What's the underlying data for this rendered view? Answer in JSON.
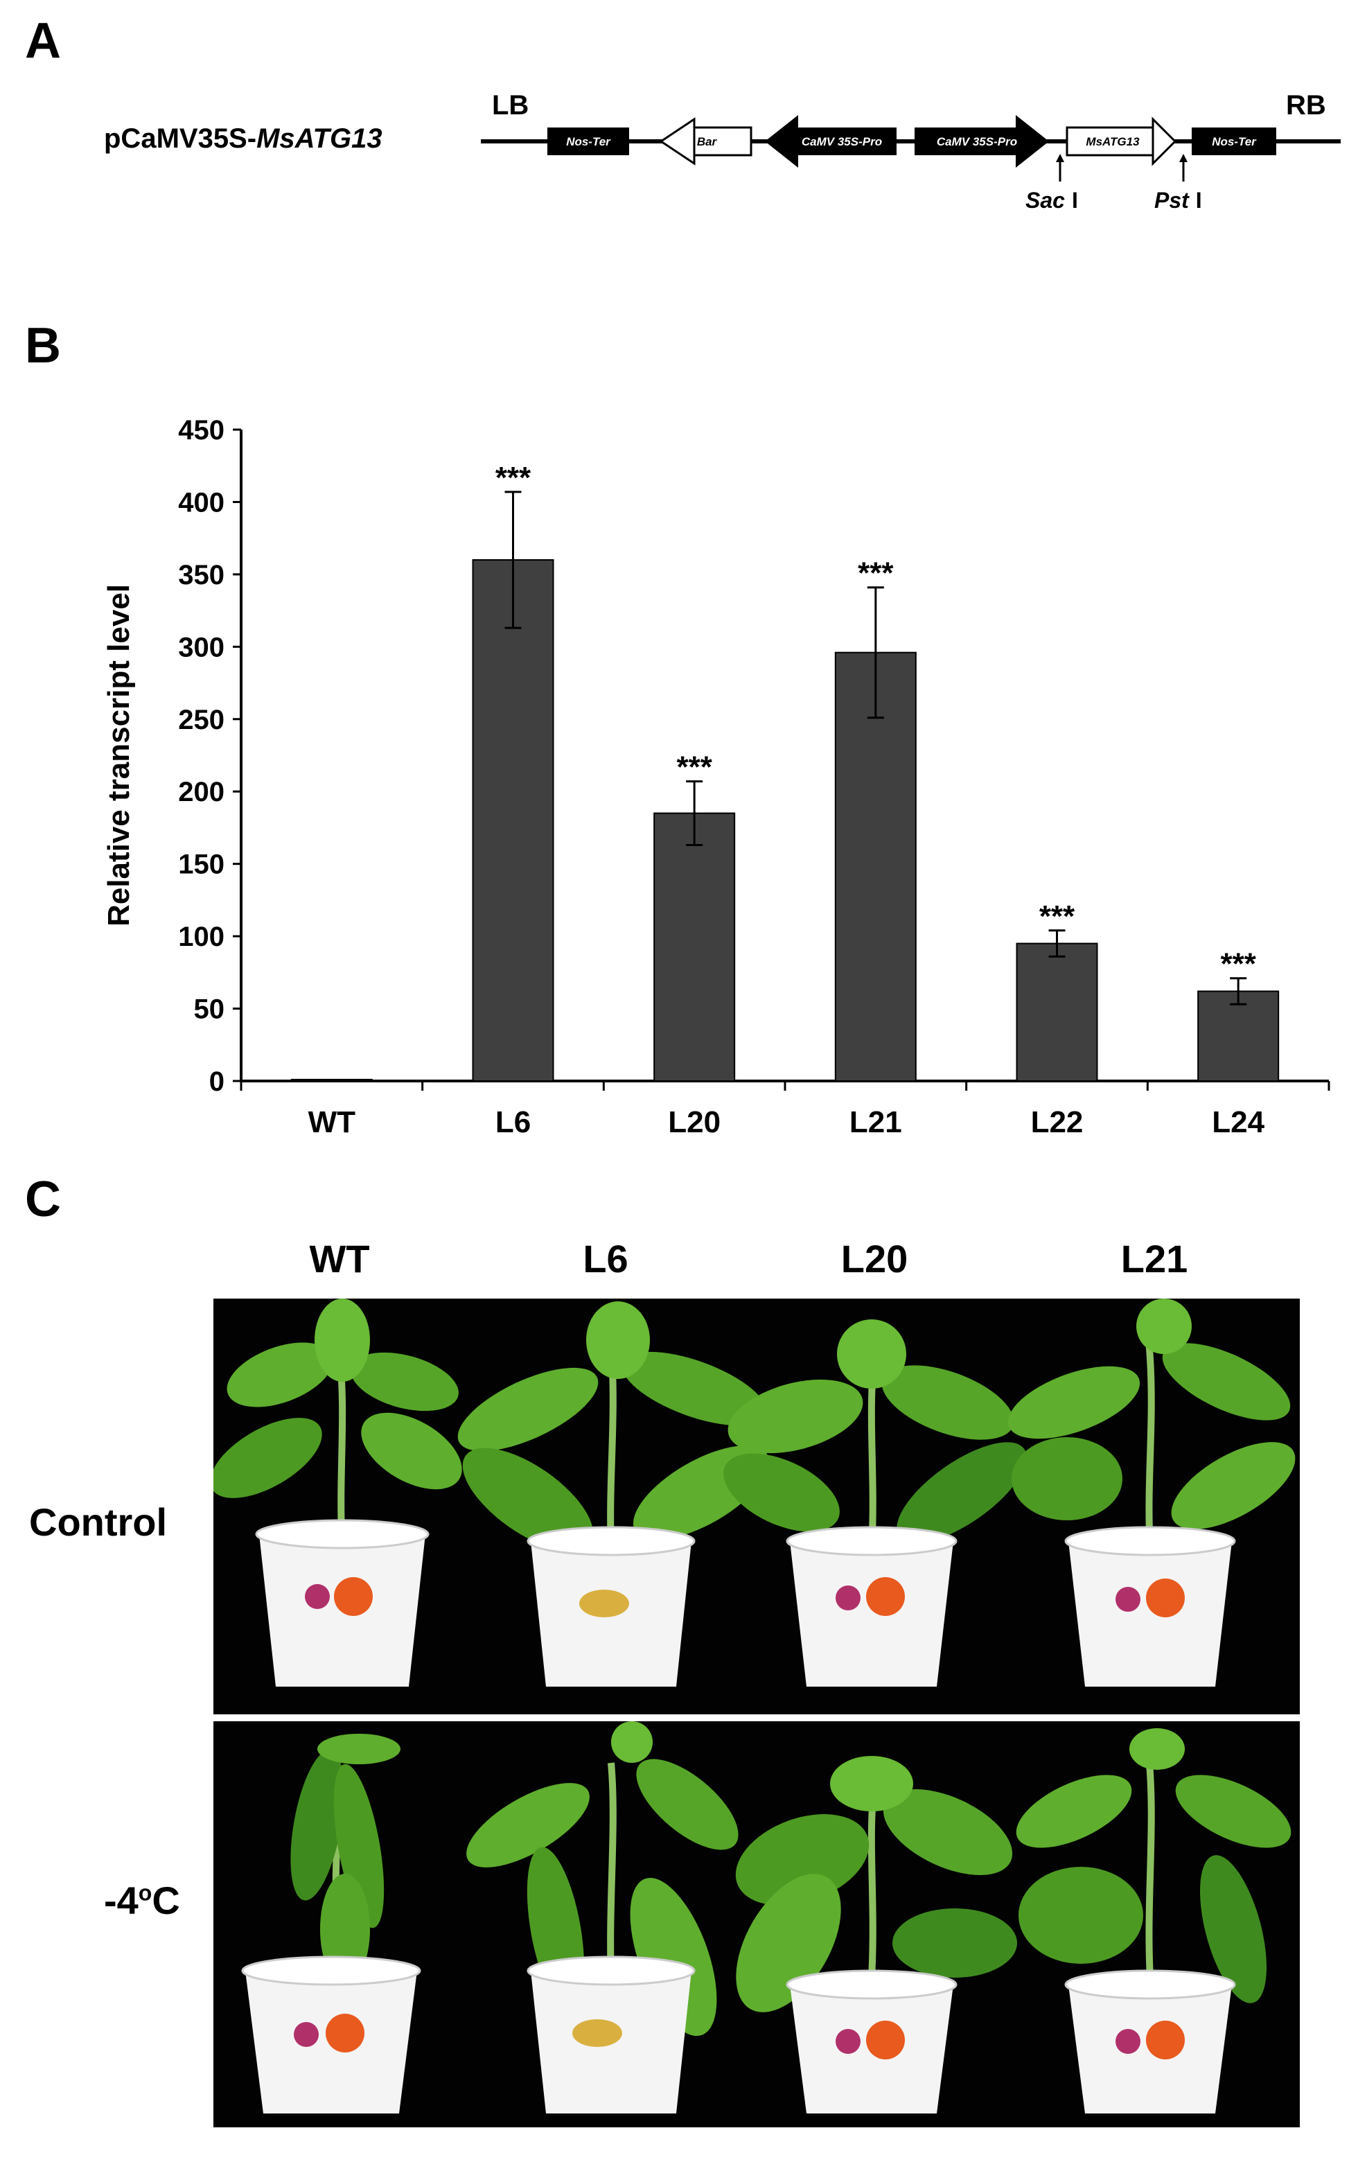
{
  "panels": {
    "a": "A",
    "b": "B",
    "c": "C"
  },
  "construct": {
    "prefix": "pCaMV35S-",
    "gene": "MsATG13",
    "lb": "LB",
    "rb": "RB",
    "elements": [
      {
        "label": "Nos-Ter",
        "style": "black-box"
      },
      {
        "label": "Bar",
        "style": "white-arrow-left"
      },
      {
        "label": "CaMV 35S-Pro",
        "style": "black-arrow-left"
      },
      {
        "label": "CaMV 35S-Pro",
        "style": "black-arrow-right"
      },
      {
        "label": "MsATG13",
        "style": "white-arrow-right"
      },
      {
        "label": "Nos-Ter",
        "style": "black-box"
      }
    ],
    "sites": [
      {
        "name": "Sac",
        "numeral": "I"
      },
      {
        "name": "Pst",
        "numeral": "I"
      }
    ]
  },
  "chart_data": {
    "type": "bar",
    "ylabel": "Relative transcript level",
    "xlabel": "",
    "categories": [
      "WT",
      "L6",
      "L20",
      "L21",
      "L22",
      "L24"
    ],
    "values": [
      1,
      360,
      185,
      296,
      95,
      62
    ],
    "errors": [
      0,
      47,
      22,
      45,
      9,
      9
    ],
    "significance": [
      "",
      "***",
      "***",
      "***",
      "***",
      "***"
    ],
    "ylim": [
      0,
      450
    ],
    "yticks": [
      "0",
      "50",
      "100",
      "150",
      "200",
      "250",
      "300",
      "350",
      "400",
      "450"
    ],
    "bar_color": "#404040",
    "grid": false
  },
  "photos": {
    "columns": [
      "WT",
      "L6",
      "L20",
      "L21"
    ],
    "rows": [
      {
        "label": "Control"
      },
      {
        "label_main": "-4",
        "label_sup": "o",
        "label_unit": "C"
      }
    ],
    "colors": {
      "background": "#020202",
      "leaf": "#5fae2e",
      "leaf_dark": "#3f8a1f",
      "stem": "#8cc060",
      "pot": "#f4f4f4"
    }
  }
}
